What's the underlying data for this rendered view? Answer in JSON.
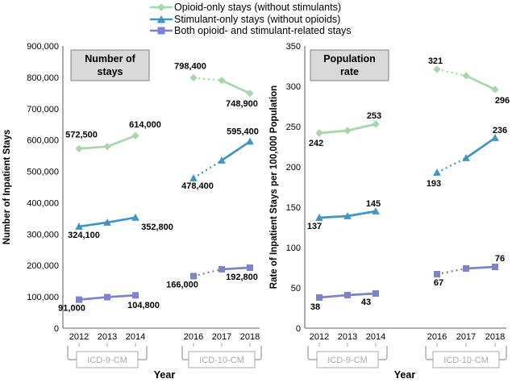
{
  "colors": {
    "opioid_green": "#a6d7a8",
    "stimulant_blue": "#3f96c6",
    "both_purple": "#7d83c8",
    "axis_gray": "#808080",
    "bracket_gray": "#a9a9a9",
    "title_box_fill": "#d9d9d9",
    "title_box_border": "#7f7f7f",
    "label_black": "#000000"
  },
  "legend": {
    "items": [
      {
        "label": "Opioid-only stays (without stimulants)",
        "color": "#a6d7a8",
        "marker": "diamond"
      },
      {
        "label": "Stimulant-only stays (without opioids)",
        "color": "#3f96c6",
        "marker": "triangle"
      },
      {
        "label": "Both opioid- and stimulant-related stays",
        "color": "#7d83c8",
        "marker": "square"
      }
    ]
  },
  "chart_data": [
    {
      "id": "number-of-stays",
      "type": "line",
      "title": "Number of stays",
      "title_lines": [
        "Number of",
        "stays"
      ],
      "ylabel": "Number of Inpatient Stays",
      "xlabel": "Year",
      "ylim": [
        0,
        900000
      ],
      "ytick_values": [
        0,
        100000,
        200000,
        300000,
        400000,
        500000,
        600000,
        700000,
        800000,
        900000
      ],
      "ytick_labels": [
        "0",
        "100,000",
        "200,000",
        "300,000",
        "400,000",
        "500,000",
        "600,000",
        "700,000",
        "800,000",
        "900,000"
      ],
      "grid": false,
      "groups": [
        {
          "label": "ICD-9-CM",
          "years": [
            "2012",
            "2013",
            "2014"
          ]
        },
        {
          "label": "ICD-10-CM",
          "years": [
            "2016",
            "2017",
            "2018"
          ]
        }
      ],
      "series": [
        {
          "name": "Opioid-only stays (without stimulants)",
          "color": "#a6d7a8",
          "marker": "diamond",
          "values_by_group": [
            [
              572500,
              579000,
              614000
            ],
            [
              798400,
              790000,
              748900
            ]
          ],
          "dotted_segments": [
            [],
            [
              0
            ]
          ],
          "point_labels": [
            {
              "g": 0,
              "i": 0,
              "text": "572,500",
              "dx": 3,
              "dy": -14
            },
            {
              "g": 0,
              "i": 2,
              "text": "614,000",
              "dx": 12,
              "dy": -10
            },
            {
              "g": 1,
              "i": 0,
              "text": "798,400",
              "dx": -4,
              "dy": -11
            },
            {
              "g": 1,
              "i": 2,
              "text": "748,900",
              "dx": -10,
              "dy": 16
            }
          ]
        },
        {
          "name": "Stimulant-only stays (without opioids)",
          "color": "#3f96c6",
          "marker": "triangle",
          "values_by_group": [
            [
              324100,
              337000,
              352800
            ],
            [
              478400,
              535000,
              595400
            ]
          ],
          "dotted_segments": [
            [],
            [
              0
            ]
          ],
          "point_labels": [
            {
              "g": 0,
              "i": 0,
              "text": "324,100",
              "dx": 6,
              "dy": 14
            },
            {
              "g": 0,
              "i": 2,
              "text": "352,800",
              "dx": 27,
              "dy": 15
            },
            {
              "g": 1,
              "i": 0,
              "text": "478,400",
              "dx": 5,
              "dy": 13
            },
            {
              "g": 1,
              "i": 2,
              "text": "595,400",
              "dx": -9,
              "dy": -9
            }
          ]
        },
        {
          "name": "Both opioid- and stimulant-related stays",
          "color": "#7d83c8",
          "marker": "square",
          "values_by_group": [
            [
              91000,
              99000,
              104800
            ],
            [
              166000,
              188000,
              192800
            ]
          ],
          "dotted_segments": [
            [],
            [
              0
            ]
          ],
          "point_labels": [
            {
              "g": 0,
              "i": 0,
              "text": "91,000",
              "dx": -9,
              "dy": 14
            },
            {
              "g": 0,
              "i": 2,
              "text": "104,800",
              "dx": 10,
              "dy": 16
            },
            {
              "g": 1,
              "i": 0,
              "text": "166,000",
              "dx": -14,
              "dy": 14
            },
            {
              "g": 1,
              "i": 2,
              "text": "192,800",
              "dx": -10,
              "dy": 15
            }
          ]
        }
      ]
    },
    {
      "id": "population-rate",
      "type": "line",
      "title": "Population rate",
      "title_lines": [
        "Population",
        "rate"
      ],
      "ylabel": "Rate of Inpatient Stays per 100,000 Population",
      "xlabel": "Year",
      "ylim": [
        0,
        350
      ],
      "ytick_values": [
        0,
        50,
        100,
        150,
        200,
        250,
        300,
        350
      ],
      "ytick_labels": [
        "0",
        "50",
        "100",
        "150",
        "200",
        "250",
        "300",
        "350"
      ],
      "grid": false,
      "groups": [
        {
          "label": "ICD-9-CM",
          "years": [
            "2012",
            "2013",
            "2014"
          ]
        },
        {
          "label": "ICD-10-CM",
          "years": [
            "2016",
            "2017",
            "2018"
          ]
        }
      ],
      "series": [
        {
          "name": "Opioid-only stays (without stimulants)",
          "color": "#a6d7a8",
          "marker": "diamond",
          "values_by_group": [
            [
              242,
              245,
              253
            ],
            [
              321,
              313,
              296
            ]
          ],
          "dotted_segments": [
            [],
            [
              0
            ]
          ],
          "point_labels": [
            {
              "g": 0,
              "i": 0,
              "text": "242",
              "dx": -4,
              "dy": 16
            },
            {
              "g": 0,
              "i": 2,
              "text": "253",
              "dx": -2,
              "dy": -7
            },
            {
              "g": 1,
              "i": 0,
              "text": "321",
              "dx": -2,
              "dy": -7
            },
            {
              "g": 1,
              "i": 2,
              "text": "296",
              "dx": 9,
              "dy": 17
            }
          ]
        },
        {
          "name": "Stimulant-only stays (without opioids)",
          "color": "#3f96c6",
          "marker": "triangle",
          "values_by_group": [
            [
              137,
              139,
              145
            ],
            [
              193,
              211,
              236
            ]
          ],
          "dotted_segments": [
            [],
            [
              0
            ]
          ],
          "point_labels": [
            {
              "g": 0,
              "i": 0,
              "text": "137",
              "dx": -6,
              "dy": 14
            },
            {
              "g": 0,
              "i": 2,
              "text": "145",
              "dx": -3,
              "dy": -6
            },
            {
              "g": 1,
              "i": 0,
              "text": "193",
              "dx": -4,
              "dy": 17
            },
            {
              "g": 1,
              "i": 2,
              "text": "236",
              "dx": 6,
              "dy": -6
            }
          ]
        },
        {
          "name": "Both opioid- and stimulant-related stays",
          "color": "#7d83c8",
          "marker": "square",
          "values_by_group": [
            [
              38,
              41,
              43
            ],
            [
              67,
              74,
              76
            ]
          ],
          "dotted_segments": [
            [],
            [
              0
            ]
          ],
          "point_labels": [
            {
              "g": 0,
              "i": 0,
              "text": "38",
              "dx": -5,
              "dy": 15
            },
            {
              "g": 0,
              "i": 2,
              "text": "43",
              "dx": -12,
              "dy": 14
            },
            {
              "g": 1,
              "i": 0,
              "text": "67",
              "dx": 2,
              "dy": 14
            },
            {
              "g": 1,
              "i": 2,
              "text": "76",
              "dx": 6,
              "dy": -7
            }
          ]
        }
      ]
    }
  ]
}
